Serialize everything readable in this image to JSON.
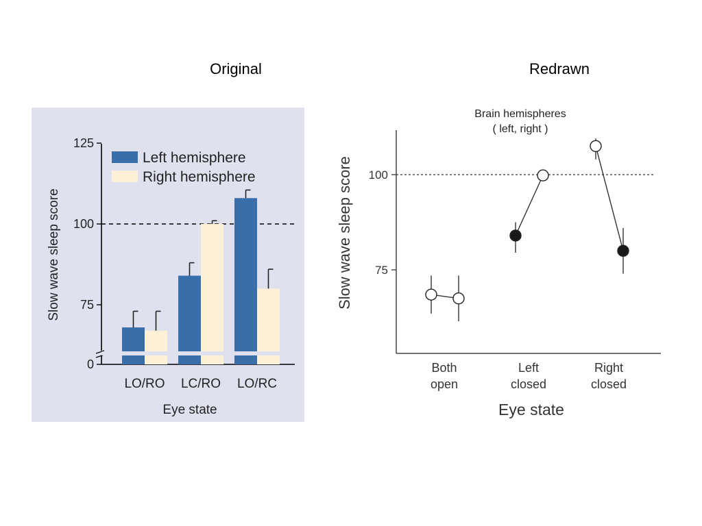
{
  "headings": {
    "left": "Original",
    "right": "Redrawn"
  },
  "colors": {
    "original_bg": "#DFE1EE",
    "left_bar": "#3A6EAA",
    "right_bar": "#FCF1D6",
    "filled_marker": "#1A1A1A",
    "open_marker": "#FFFFFF"
  },
  "chart_data": [
    {
      "type": "bar",
      "panel": "Original",
      "xlabel": "Eye state",
      "ylabel": "Slow wave sleep score",
      "categories": [
        "LO/RO",
        "LC/RO",
        "LO/RC"
      ],
      "yticks": [
        0,
        75,
        100,
        125
      ],
      "y_axis_break": true,
      "ylim": [
        60,
        125
      ],
      "reference_line": 100,
      "legend_position": "top",
      "series": [
        {
          "name": "Left hemisphere",
          "values": [
            68,
            84,
            108
          ],
          "error": [
            5,
            4,
            2.5
          ]
        },
        {
          "name": "Right hemisphere",
          "values": [
            67,
            100,
            80
          ],
          "error": [
            6,
            1,
            6
          ]
        }
      ]
    },
    {
      "type": "scatter",
      "panel": "Redrawn",
      "title": "Brain hemispheres",
      "subtitle": "( left, right )",
      "xlabel": "Eye state",
      "ylabel": "Slow wave sleep score",
      "categories": [
        "Both open",
        "Left closed",
        "Right closed"
      ],
      "category_lines": [
        [
          "Both",
          "open"
        ],
        [
          "Left",
          "closed"
        ],
        [
          "Right",
          "closed"
        ]
      ],
      "yticks": [
        75,
        100
      ],
      "ylim": [
        60,
        114
      ],
      "reference_line": 100,
      "series": [
        {
          "name": "left",
          "values": [
            68.5,
            84,
            107.5
          ],
          "error_low": [
            5,
            4.5,
            3.5
          ],
          "error_high": [
            5,
            3.5,
            2
          ],
          "filled": [
            false,
            true,
            false
          ]
        },
        {
          "name": "right",
          "values": [
            67.5,
            99.8,
            80
          ],
          "error_low": [
            6,
            0,
            6
          ],
          "error_high": [
            6,
            0,
            6
          ],
          "filled": [
            false,
            false,
            true
          ]
        }
      ]
    }
  ]
}
